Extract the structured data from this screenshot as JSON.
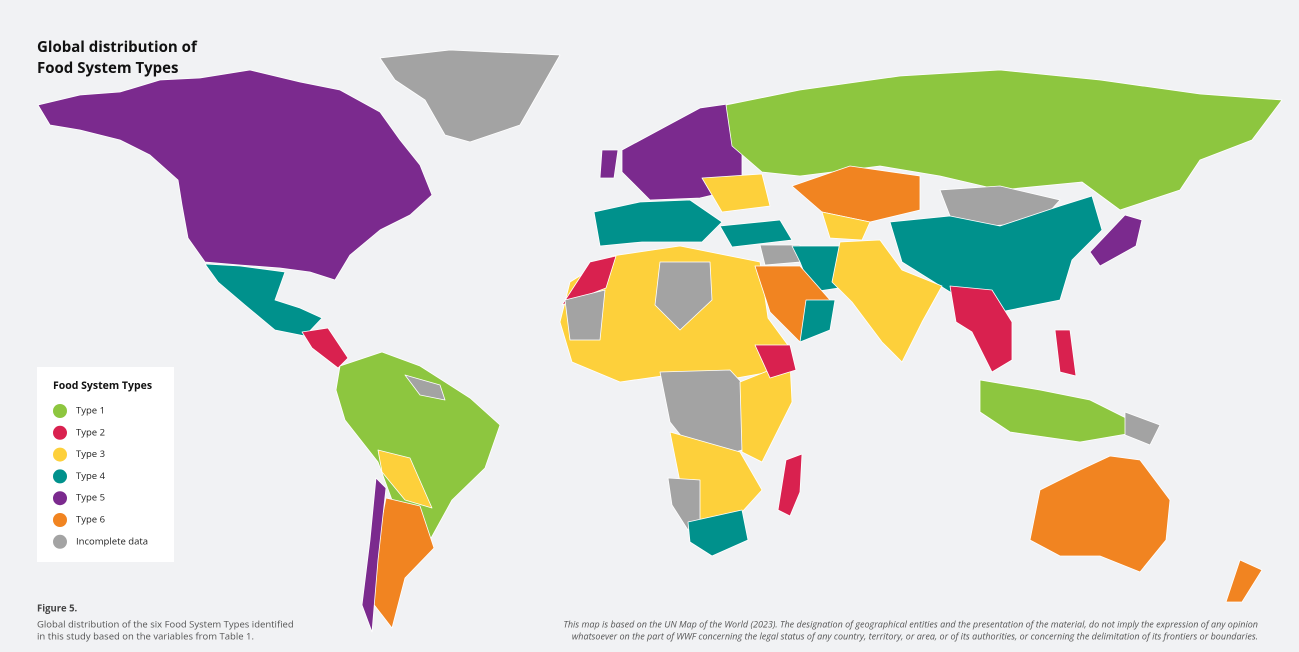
{
  "header": {
    "title_lines": [
      "Global distribution of",
      "Food System Types"
    ]
  },
  "legend": {
    "title": "Food System Types",
    "items": [
      {
        "label": "Type 1",
        "color": "#8dc63f"
      },
      {
        "label": "Type 2",
        "color": "#d9214f"
      },
      {
        "label": "Type 3",
        "color": "#fdd03b"
      },
      {
        "label": "Type 4",
        "color": "#00918c"
      },
      {
        "label": "Type 5",
        "color": "#7b2a8e"
      },
      {
        "label": "Type 6",
        "color": "#f18421"
      },
      {
        "label": "Incomplete data",
        "color": "#a3a3a3"
      }
    ]
  },
  "figure": {
    "label": "Figure 5.",
    "caption_lines": [
      "Global distribution of the six Food System Types identified",
      "in this study based on the variables from Table 1."
    ]
  },
  "disclaimer_lines": [
    "This map is based on the UN Map of the World (2023). The designation of geographical entities and the presentation of the material, do not imply the expression of any opinion",
    "whatsoever on the part of WWF concerning the legal status of any country, territory, or area, or of its authorities, or concerning the delimitation of its frontiers or boundaries."
  ]
}
